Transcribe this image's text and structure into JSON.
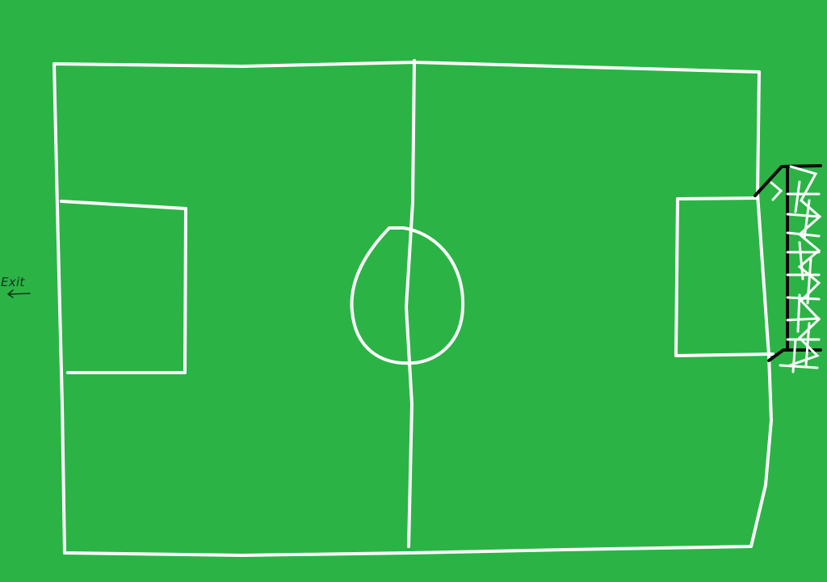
{
  "exit_button": {
    "label": "Exit",
    "icon": "left-arrow-icon"
  },
  "colors": {
    "grass": "#2bb445",
    "lines": "#ffffff",
    "goal_frame": "#0a0a0a",
    "exit_text": "#0f3318"
  }
}
